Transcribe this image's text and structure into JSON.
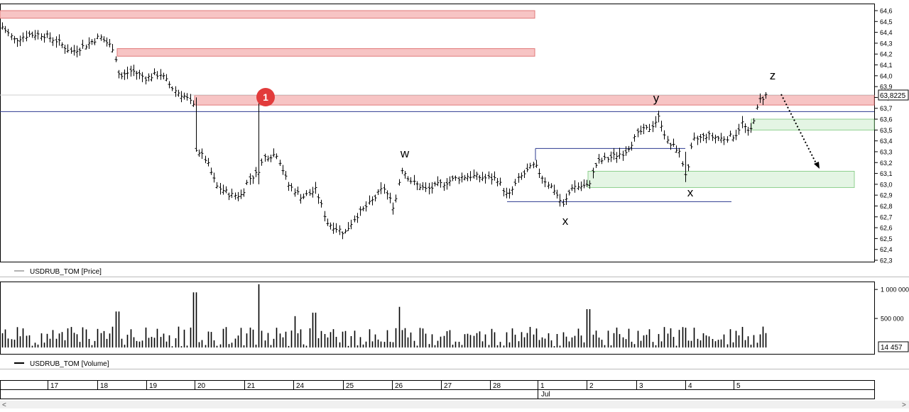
{
  "colors": {
    "bar": "#000000",
    "resistance_fill": "#f7c4c4",
    "resistance_stroke": "#e07a7a",
    "support_fill": "#e4f5e4",
    "support_stroke": "#8fd08f",
    "level_line": "#2b3a8f",
    "marker": "#e23b3b",
    "axis": "#000000"
  },
  "chart_data": [
    {
      "type": "ohlc-bars",
      "series_name": "USDRUB_TOM [Price]",
      "ylim": [
        62.3,
        64.6
      ],
      "y_ticks": [
        "64,6",
        "64,5",
        "64,4",
        "64,3",
        "64,2",
        "64,1",
        "64,0",
        "63,9",
        "63,8",
        "63,7",
        "63,6",
        "63,5",
        "63,4",
        "63,3",
        "63,2",
        "63,1",
        "63,0",
        "62,9",
        "62,8",
        "62,7",
        "62,6",
        "62,5",
        "62,4",
        "62,3"
      ],
      "last_price_label": "63,8225",
      "last_price": 63.8225,
      "x_days": [
        "17",
        "18",
        "19",
        "20",
        "21",
        "24",
        "25",
        "26",
        "27",
        "28",
        "1",
        "2",
        "3",
        "4",
        "5"
      ],
      "x_month": "Jul",
      "annotations": {
        "marker_number": "1",
        "wave_w": "w",
        "wave_x1": "x",
        "wave_y": "y",
        "wave_x2": "x",
        "wave_z": "z"
      },
      "resistance_zones": [
        {
          "from": 64.53,
          "to": 64.6,
          "start": "start",
          "end": "1"
        },
        {
          "from": 64.18,
          "to": 64.25,
          "start": "18",
          "end": "1"
        },
        {
          "from": 63.73,
          "to": 63.82,
          "start": "20",
          "end": "right edge"
        }
      ],
      "support_zones": [
        {
          "from": 63.5,
          "to": 63.6,
          "start": "5",
          "end": "right edge"
        },
        {
          "from": 62.97,
          "to": 63.12,
          "start": "2",
          "end": "5"
        }
      ],
      "level_lines": [
        63.67,
        63.33,
        62.84
      ]
    },
    {
      "type": "bar",
      "series_name": "USDRUB_TOM [Volume]",
      "y_ticks": [
        "1 000 000",
        "500 000"
      ],
      "last_volume_label": "14 457",
      "ylim": [
        0,
        1100000
      ]
    }
  ]
}
